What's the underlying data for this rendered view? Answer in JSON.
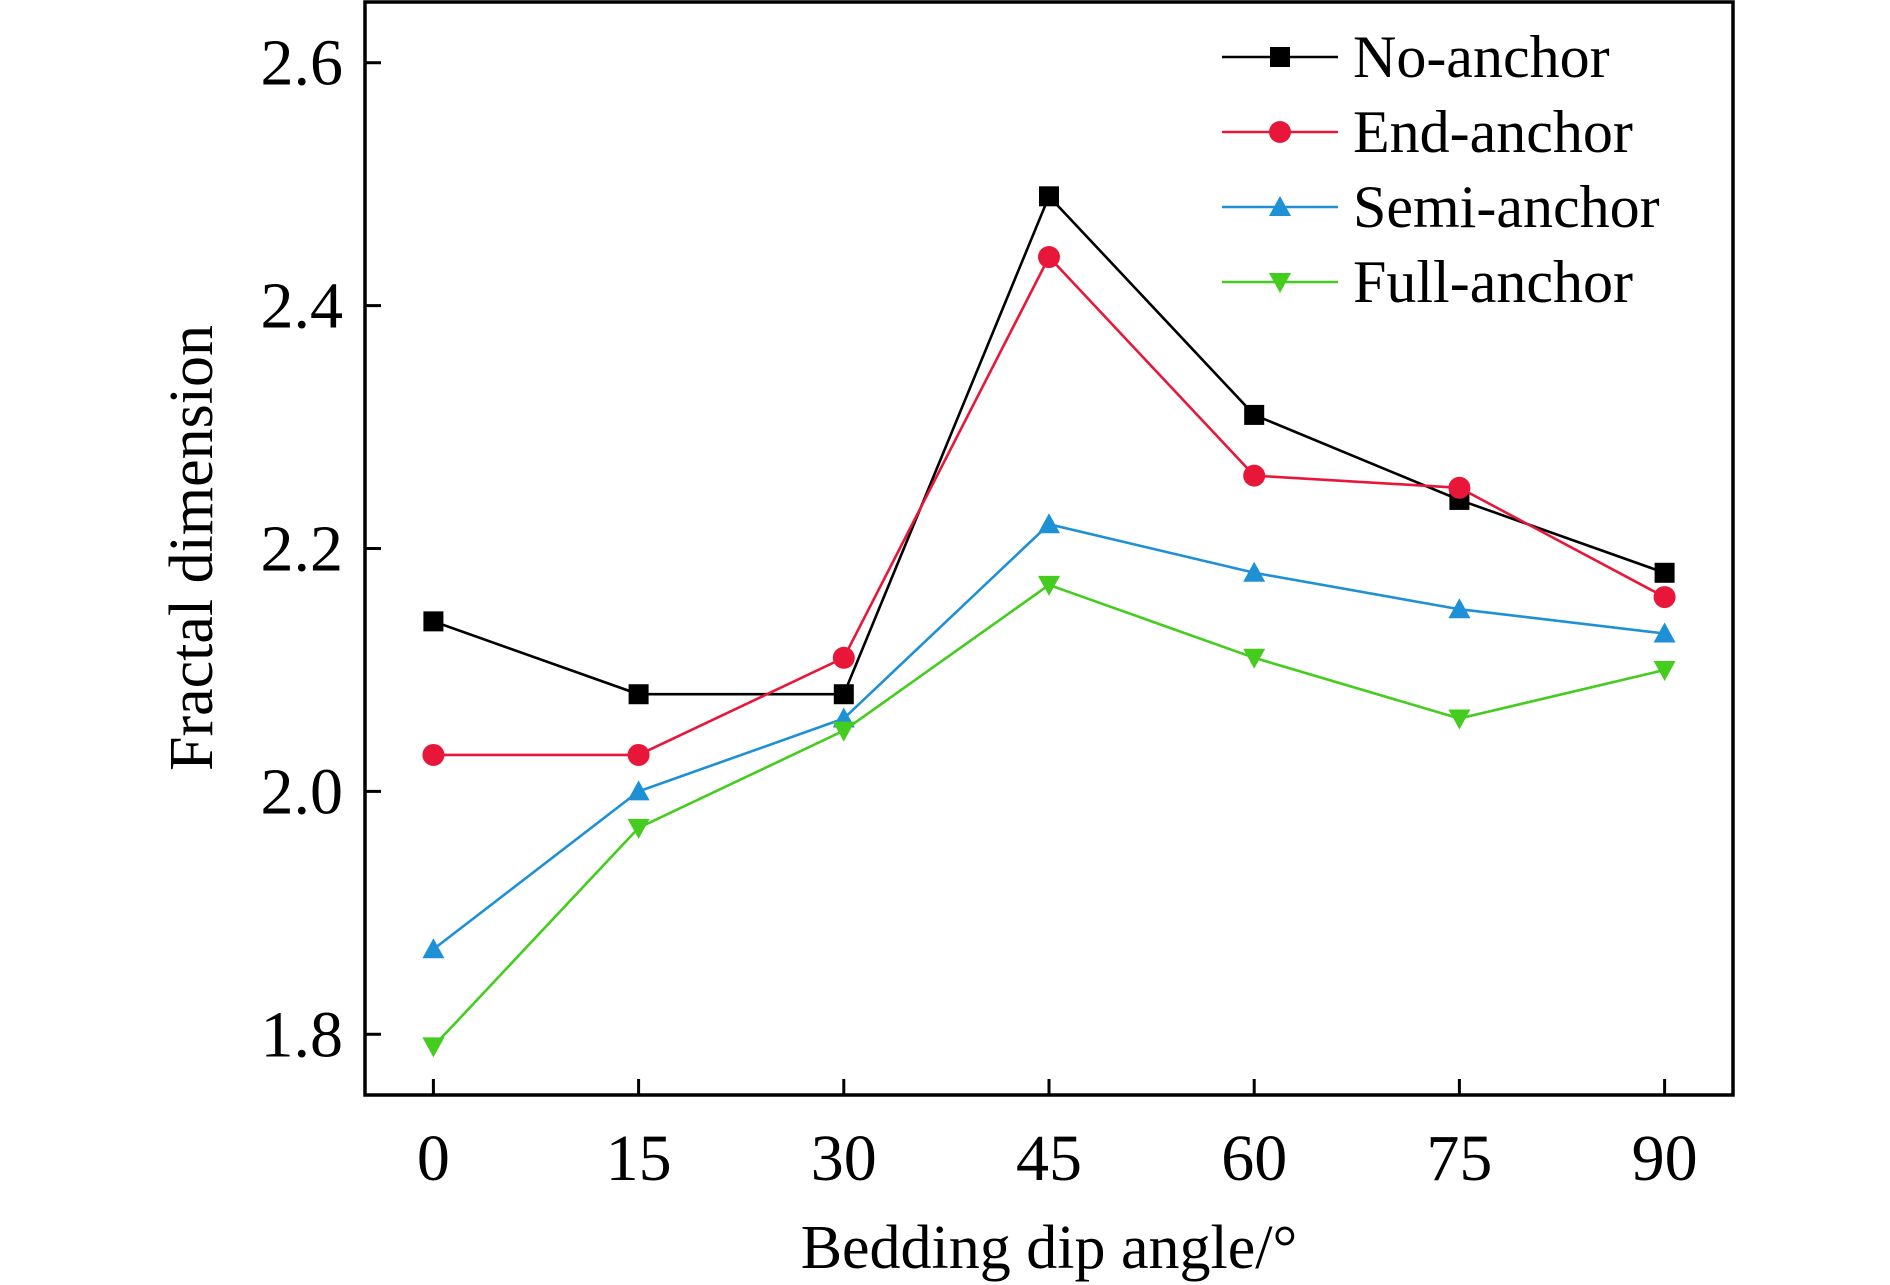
{
  "chart_data": {
    "type": "line",
    "title": "",
    "xlabel": "Bedding dip angle/°",
    "ylabel": "Fractal dimension",
    "x": [
      0,
      15,
      30,
      45,
      60,
      75,
      90
    ],
    "x_tick_labels": [
      "0",
      "15",
      "30",
      "45",
      "60",
      "75",
      "90"
    ],
    "xlim": [
      -5,
      95
    ],
    "ylim": [
      1.75,
      2.65
    ],
    "y_ticks": [
      1.8,
      2.0,
      2.2,
      2.4,
      2.6
    ],
    "y_tick_labels": [
      "1.8",
      "2.0",
      "2.2",
      "2.4",
      "2.6"
    ],
    "grid": false,
    "legend_position": "top-right",
    "series": [
      {
        "name": "No-anchor",
        "marker": "square",
        "color": "#000000",
        "values": [
          2.14,
          2.08,
          2.08,
          2.49,
          2.31,
          2.24,
          2.18
        ]
      },
      {
        "name": "End-anchor",
        "marker": "circle",
        "color": "#e8173a",
        "values": [
          2.03,
          2.03,
          2.11,
          2.44,
          2.26,
          2.25,
          2.16
        ]
      },
      {
        "name": "Semi-anchor",
        "marker": "triangle-up",
        "color": "#1e90d6",
        "values": [
          1.87,
          2.0,
          2.06,
          2.22,
          2.18,
          2.15,
          2.13
        ]
      },
      {
        "name": "Full-anchor",
        "marker": "triangle-down",
        "color": "#44cc1e",
        "values": [
          1.79,
          1.97,
          2.05,
          2.17,
          2.11,
          2.06,
          2.1
        ]
      }
    ]
  }
}
